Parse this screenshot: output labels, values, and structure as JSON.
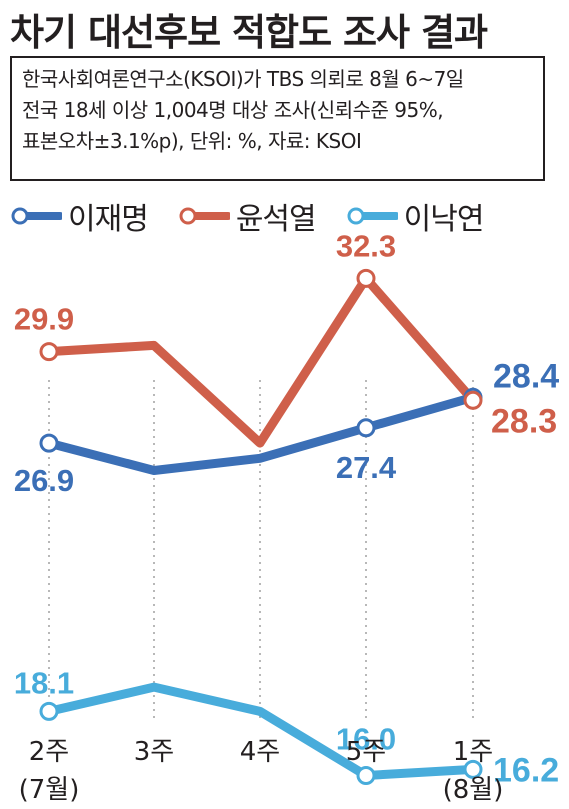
{
  "title": "차기 대선후보 적합도 조사 결과",
  "info": {
    "line1": "한국사회여론연구소(KSOI)가 TBS 의뢰로 8월 6~7일",
    "line2": "전국 18세 이상 1,004명 대상 조사(신뢰수준 95%,",
    "line3": "표본오차±3.1%p), 단위: %, 자료: KSOI"
  },
  "chart_data": {
    "type": "line",
    "title": "차기 대선후보 적합도 조사 결과",
    "categories": [
      "2주\n(7월)",
      "3주",
      "4주",
      "5주",
      "1주\n(8월)"
    ],
    "tick_labels": [
      {
        "line1": "2주",
        "line2": "(7월)"
      },
      {
        "line1": "3주",
        "line2": ""
      },
      {
        "line1": "4주",
        "line2": ""
      },
      {
        "line1": "5주",
        "line2": ""
      },
      {
        "line1": "1주",
        "line2": "(8월)"
      }
    ],
    "grid": "vertical dotted lines at each category",
    "legend_position": "top-left",
    "series": [
      {
        "name": "이재명",
        "color": "#3b6fb6",
        "values": [
          26.9,
          26.0,
          26.4,
          27.4,
          28.4
        ],
        "labels": {
          "0": "26.9",
          "3": "27.4",
          "4": "28.4"
        }
      },
      {
        "name": "윤석열",
        "color": "#cf5f4a",
        "values": [
          29.9,
          30.1,
          26.9,
          32.3,
          28.3
        ],
        "labels": {
          "0": "29.9",
          "3": "32.3",
          "4": "28.3"
        }
      },
      {
        "name": "이낙연",
        "color": "#48acdb",
        "values": [
          18.1,
          18.9,
          18.1,
          16.0,
          16.2
        ],
        "labels": {
          "0": "18.1",
          "3": "16.0",
          "4": "16.2"
        }
      }
    ]
  }
}
